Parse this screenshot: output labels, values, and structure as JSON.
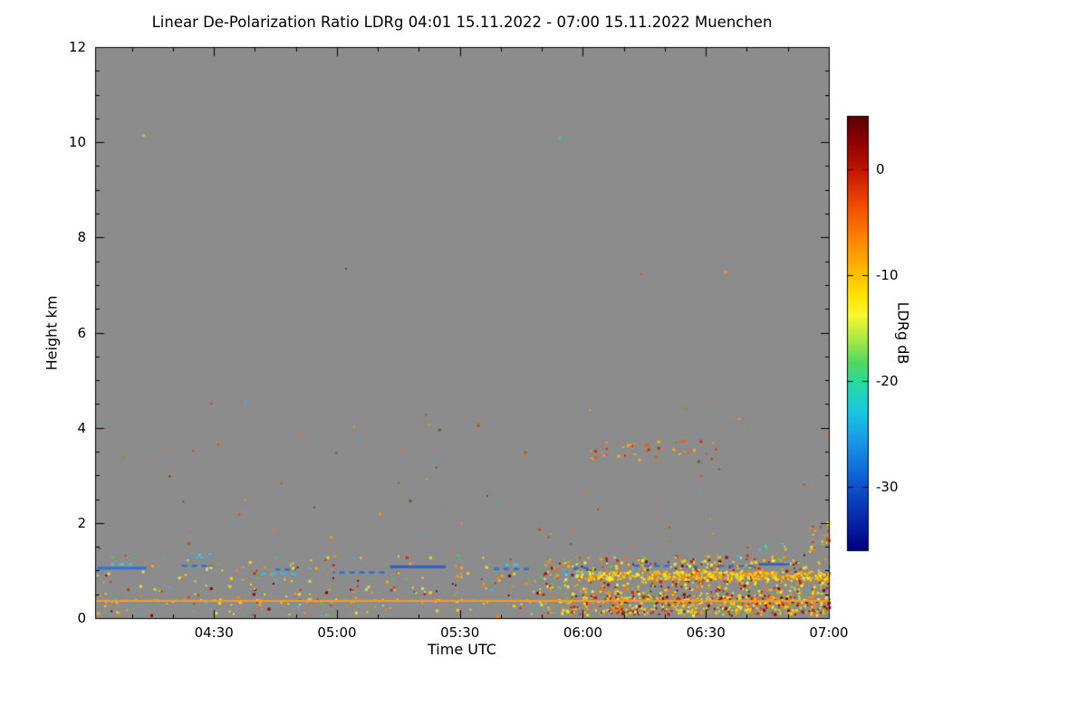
{
  "chart_data": {
    "type": "heatmap",
    "title": "Linear De-Polarization Ratio LDRg   04:01 15.11.2022 - 07:00 15.11.2022 Muenchen",
    "xlabel": "Time UTC",
    "ylabel": "Height km",
    "x_start_min": 0,
    "x_end_min": 179,
    "x_ticks": [
      {
        "label": "04:30",
        "min": 29
      },
      {
        "label": "05:00",
        "min": 59
      },
      {
        "label": "05:30",
        "min": 89
      },
      {
        "label": "06:00",
        "min": 119
      },
      {
        "label": "06:30",
        "min": 149
      },
      {
        "label": "07:00",
        "min": 179
      }
    ],
    "x_minor_step_min": 10,
    "ylim": [
      0,
      12
    ],
    "y_ticks": [
      {
        "label": "0",
        "value": 0
      },
      {
        "label": "2",
        "value": 2
      },
      {
        "label": "4",
        "value": 4
      },
      {
        "label": "6",
        "value": 6
      },
      {
        "label": "8",
        "value": 8
      },
      {
        "label": "10",
        "value": 10
      },
      {
        "label": "12",
        "value": 12
      }
    ],
    "y_minor_step": 0.5,
    "background_color": "#8c8c8c",
    "axis_color": "#000000",
    "seed": 1337,
    "colorbar": {
      "label": "LDRg dB",
      "vmin": -36,
      "vmax": 5,
      "ticks": [
        {
          "label": "0",
          "value": 0
        },
        {
          "label": "-10",
          "value": -10
        },
        {
          "label": "-20",
          "value": -20
        },
        {
          "label": "-30",
          "value": -30
        }
      ],
      "stops": [
        [
          0.0,
          "#5a0000"
        ],
        [
          0.06,
          "#8f0000"
        ],
        [
          0.13,
          "#c41800"
        ],
        [
          0.2,
          "#f04800"
        ],
        [
          0.28,
          "#ff8000"
        ],
        [
          0.35,
          "#ffb400"
        ],
        [
          0.41,
          "#ffe000"
        ],
        [
          0.46,
          "#f8f830"
        ],
        [
          0.52,
          "#a0e848"
        ],
        [
          0.57,
          "#50d860"
        ],
        [
          0.62,
          "#28d8a8"
        ],
        [
          0.68,
          "#18c8e0"
        ],
        [
          0.75,
          "#1898e8"
        ],
        [
          0.82,
          "#1068d8"
        ],
        [
          0.9,
          "#0838b8"
        ],
        [
          1.0,
          "#000080"
        ]
      ]
    },
    "features": {
      "surface_line": {
        "t0": 0,
        "t1": 179,
        "h": 0.36,
        "color": "#ff9820",
        "width": 2
      },
      "streaks": [
        {
          "t0": 0.5,
          "t1": 12.5,
          "h": 1.05,
          "color": "#2f6fd6",
          "dash": false,
          "width": 3
        },
        {
          "t0": 4,
          "t1": 9,
          "h": 1.13,
          "color": "#45c4e6",
          "dash": true,
          "width": 2.5
        },
        {
          "t0": 20,
          "t1": 28.5,
          "h": 1.1,
          "color": "#2f6fd6",
          "dash": true,
          "width": 2.5
        },
        {
          "t0": 40,
          "t1": 50,
          "h": 0.93,
          "color": "#3fb4e0",
          "dash": true,
          "width": 2.5
        },
        {
          "t0": 44,
          "t1": 49,
          "h": 1.02,
          "color": "#2f6fd6",
          "dash": true,
          "width": 2.5
        },
        {
          "t0": 58,
          "t1": 71,
          "h": 0.96,
          "color": "#2f6fd6",
          "dash": true,
          "width": 2.5
        },
        {
          "t0": 72,
          "t1": 85.5,
          "h": 1.08,
          "color": "#2b5fd0",
          "dash": false,
          "width": 3
        },
        {
          "t0": 97,
          "t1": 107,
          "h": 1.03,
          "color": "#2f6fd6",
          "dash": true,
          "width": 2.5
        },
        {
          "t0": 100,
          "t1": 104,
          "h": 1.12,
          "color": "#45c4e6",
          "dash": true,
          "width": 2.5
        },
        {
          "t0": 113,
          "t1": 123,
          "h": 0.94,
          "color": "#3fb4e0",
          "dash": true,
          "width": 2.5
        },
        {
          "t0": 116,
          "t1": 121,
          "h": 1.05,
          "color": "#2f6fd6",
          "dash": true,
          "width": 2.5
        },
        {
          "t0": 131.5,
          "t1": 141,
          "h": 1.1,
          "color": "#2f6fd6",
          "dash": true,
          "width": 2.5
        },
        {
          "t0": 144,
          "t1": 147,
          "h": 1.08,
          "color": "#2f6fd6",
          "dash": true,
          "width": 2.5
        },
        {
          "t0": 151,
          "t1": 161,
          "h": 1.1,
          "color": "#2f6fd6",
          "dash": true,
          "width": 2.5
        },
        {
          "t0": 162,
          "t1": 169.5,
          "h": 1.13,
          "color": "#2b5fd0",
          "dash": false,
          "width": 2.5
        }
      ],
      "speckle_regions": [
        {
          "t0": 0,
          "t1": 179,
          "h0": 0.05,
          "h1": 1.35,
          "count": 380,
          "palette": [
            "#ffa500",
            "#ffd700",
            "#e8e040",
            "#58c058",
            "#40b8d8",
            "#cc3300",
            "#8b0000",
            "#d8d848",
            "#ff8800"
          ]
        },
        {
          "t0": 108,
          "t1": 179,
          "h0": 0.08,
          "h1": 1.32,
          "count": 780,
          "palette": [
            "#ffb000",
            "#ffd700",
            "#ffee30",
            "#ff7000",
            "#cc2200",
            "#58c058",
            "#8b0000",
            "#e8e840",
            "#ff9000",
            "#a01000"
          ]
        },
        {
          "t0": 117,
          "t1": 179,
          "h0": 0.82,
          "h1": 1.0,
          "count": 430,
          "palette": [
            "#ffd700",
            "#ffee30",
            "#ffb400",
            "#ff9800"
          ]
        },
        {
          "t0": 0,
          "t1": 179,
          "h0": 1.4,
          "h1": 4.6,
          "count": 70,
          "palette": [
            "#e07820",
            "#c85000",
            "#6a5a3a",
            "#909050",
            "#40b0d0",
            "#d8a020"
          ]
        },
        {
          "t0": 119,
          "t1": 152,
          "h0": 3.35,
          "h1": 3.75,
          "count": 45,
          "palette": [
            "#ff8c00",
            "#e06010",
            "#ffaa20",
            "#c83000"
          ]
        },
        {
          "t0": 22,
          "t1": 28,
          "h0": 1.25,
          "h1": 1.45,
          "count": 9,
          "palette": [
            "#45c8e8",
            "#30a8d8"
          ]
        },
        {
          "t0": 125,
          "t1": 179,
          "h0": 0.12,
          "h1": 0.5,
          "count": 320,
          "palette": [
            "#ffd700",
            "#ff8c00",
            "#cc2200",
            "#e8e840",
            "#8b0000",
            "#58c058"
          ]
        },
        {
          "t0": 174,
          "t1": 179,
          "h0": 1.3,
          "h1": 2.05,
          "count": 22,
          "palette": [
            "#ff9800",
            "#ffd700",
            "#cc3300"
          ]
        },
        {
          "t0": 0,
          "t1": 125,
          "h0": 0.3,
          "h1": 0.42,
          "count": 45,
          "palette": [
            "#ffd700",
            "#ffaa00"
          ]
        },
        {
          "t0": 160,
          "t1": 170,
          "h0": 1.4,
          "h1": 1.6,
          "count": 10,
          "palette": [
            "#45c8e8",
            "#58c058",
            "#ffd700"
          ]
        }
      ],
      "dots": [
        {
          "t": 11.5,
          "h": 10.17,
          "color": "#a8c85a",
          "size": 3
        },
        {
          "t": 113,
          "h": 10.12,
          "color": "#38c8a8",
          "size": 3
        },
        {
          "t": 61,
          "h": 7.36,
          "color": "#5a5444",
          "size": 2
        },
        {
          "t": 153.5,
          "h": 7.3,
          "color": "#ff8c28",
          "size": 3
        },
        {
          "t": 133,
          "h": 7.25,
          "color": "#c05818",
          "size": 2
        },
        {
          "t": 18,
          "h": 3.0,
          "color": "#8b1a00",
          "size": 2
        },
        {
          "t": 17,
          "h": 3.55,
          "color": "#d08030",
          "size": 2
        },
        {
          "t": 43.5,
          "h": 1.9,
          "color": "#e08030",
          "size": 2
        },
        {
          "t": 155.5,
          "h": 4.25,
          "color": "#e08030",
          "size": 2
        },
        {
          "t": 157,
          "h": 4.2,
          "color": "#ffaa00",
          "size": 2
        }
      ]
    }
  }
}
